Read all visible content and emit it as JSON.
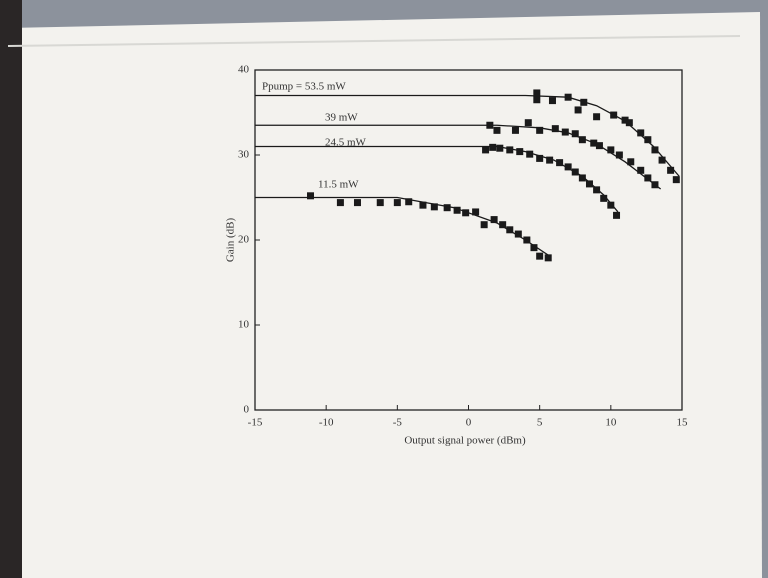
{
  "chart_data": {
    "type": "scatter",
    "x_label": "Output signal power (dBm)",
    "y_label": "Gain (dB)",
    "xlim": [
      -15,
      15
    ],
    "xticks": [
      -15,
      -10,
      -5,
      0,
      5,
      10,
      15
    ],
    "ylim": [
      0,
      40
    ],
    "yticks": [
      0,
      10,
      20,
      30,
      40
    ],
    "series": [
      {
        "name": "Ppump = 53.5 mW",
        "color": "#1a1a1a",
        "x": [
          4.8,
          4.8,
          5.9,
          7.0,
          7.7,
          8.1,
          9.0,
          10.2,
          11.0,
          11.3,
          12.1,
          12.6,
          13.1,
          13.6,
          14.2,
          14.6
        ],
        "values": [
          37.3,
          36.5,
          36.4,
          36.8,
          35.3,
          36.2,
          34.5,
          34.7,
          34.1,
          33.8,
          32.6,
          31.8,
          30.6,
          29.4,
          28.2,
          27.1
        ],
        "curve_x": [
          -15,
          4,
          7,
          9,
          11,
          13,
          14.8
        ],
        "curve_y": [
          37,
          37,
          36.8,
          35.8,
          34,
          31,
          27.5
        ]
      },
      {
        "name": "39 mW",
        "color": "#1a1a1a",
        "x": [
          1.5,
          2.0,
          3.3,
          4.2,
          5.0,
          6.1,
          6.8,
          7.5,
          8.0,
          8.8,
          9.2,
          10.0,
          10.6,
          11.4,
          12.1,
          12.6,
          13.1
        ],
        "values": [
          33.5,
          32.9,
          32.9,
          33.8,
          32.9,
          33.1,
          32.7,
          32.5,
          31.8,
          31.4,
          31.1,
          30.6,
          30.0,
          29.2,
          28.2,
          27.3,
          26.5
        ],
        "curve_x": [
          -15,
          2,
          5,
          7,
          9,
          11,
          13.5
        ],
        "curve_y": [
          33.5,
          33.5,
          33.2,
          32.6,
          31.3,
          29.2,
          26
        ]
      },
      {
        "name": "24.5 mW",
        "color": "#1a1a1a",
        "x": [
          1.2,
          1.7,
          2.2,
          2.9,
          3.6,
          4.3,
          5.0,
          5.7,
          6.4,
          7.0,
          7.5,
          8.0,
          8.5,
          9.0,
          9.5,
          10.0,
          10.4
        ],
        "values": [
          30.6,
          30.9,
          30.8,
          30.6,
          30.4,
          30.1,
          29.6,
          29.4,
          29.1,
          28.6,
          28.0,
          27.3,
          26.6,
          25.9,
          24.9,
          24.1,
          22.9
        ],
        "curve_x": [
          -15,
          2,
          4,
          6,
          8,
          9.5,
          10.5
        ],
        "curve_y": [
          31,
          31,
          30.4,
          29.4,
          27.5,
          25.3,
          23.3
        ]
      },
      {
        "name": "11.5 mW",
        "color": "#1a1a1a",
        "x": [
          -11.1,
          -9.0,
          -7.8,
          -6.2,
          -5.0,
          -4.2,
          -3.2,
          -2.4,
          -1.5,
          -0.8,
          -0.2,
          0.5,
          1.1,
          1.8,
          2.4,
          2.9,
          3.5,
          4.1,
          4.6,
          5.0,
          5.6
        ],
        "values": [
          25.2,
          24.4,
          24.4,
          24.4,
          24.4,
          24.5,
          24.1,
          23.9,
          23.8,
          23.5,
          23.2,
          23.3,
          21.8,
          22.4,
          21.8,
          21.2,
          20.7,
          20.0,
          19.1,
          18.1,
          17.9
        ],
        "curve_x": [
          -15,
          -5,
          -1,
          2,
          4,
          5.8
        ],
        "curve_y": [
          25,
          25,
          23.8,
          22,
          20,
          18
        ]
      }
    ]
  }
}
